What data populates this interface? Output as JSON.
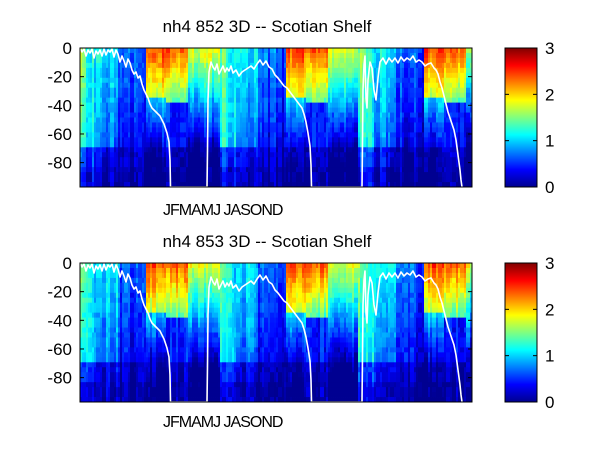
{
  "chart_data": [
    {
      "type": "heatmap",
      "title": "nh4  852 3D   -- Scotian Shelf",
      "xlabel": "JFMAMJ JASOND",
      "ylabel": "",
      "ylim": [
        -97,
        0
      ],
      "yticks": [
        0,
        -20,
        -40,
        -60,
        -80
      ],
      "ytick_labels": [
        "0",
        "-20",
        "-40",
        "-60",
        "-80"
      ],
      "colorbar": {
        "range": [
          0,
          3
        ],
        "ticks": [
          0,
          1,
          2,
          3
        ],
        "tick_labels": [
          "0",
          "1",
          "2",
          "3"
        ],
        "colormap": "jet"
      },
      "mixed_layer_line_color": "#ffffff",
      "grid": false
    },
    {
      "type": "heatmap",
      "title": "nh4  853 3D   -- Scotian Shelf",
      "xlabel": "JFMAMJ JASOND",
      "ylabel": "",
      "ylim": [
        -97,
        0
      ],
      "yticks": [
        0,
        -20,
        -40,
        -60,
        -80
      ],
      "ytick_labels": [
        "0",
        "-20",
        "-40",
        "-60",
        "-80"
      ],
      "colorbar": {
        "range": [
          0,
          3
        ],
        "ticks": [
          0,
          1,
          2,
          3
        ],
        "tick_labels": [
          "0",
          "1",
          "2",
          "3"
        ],
        "colormap": "jet"
      },
      "mixed_layer_line_color": "#ffffff",
      "grid": false
    }
  ]
}
